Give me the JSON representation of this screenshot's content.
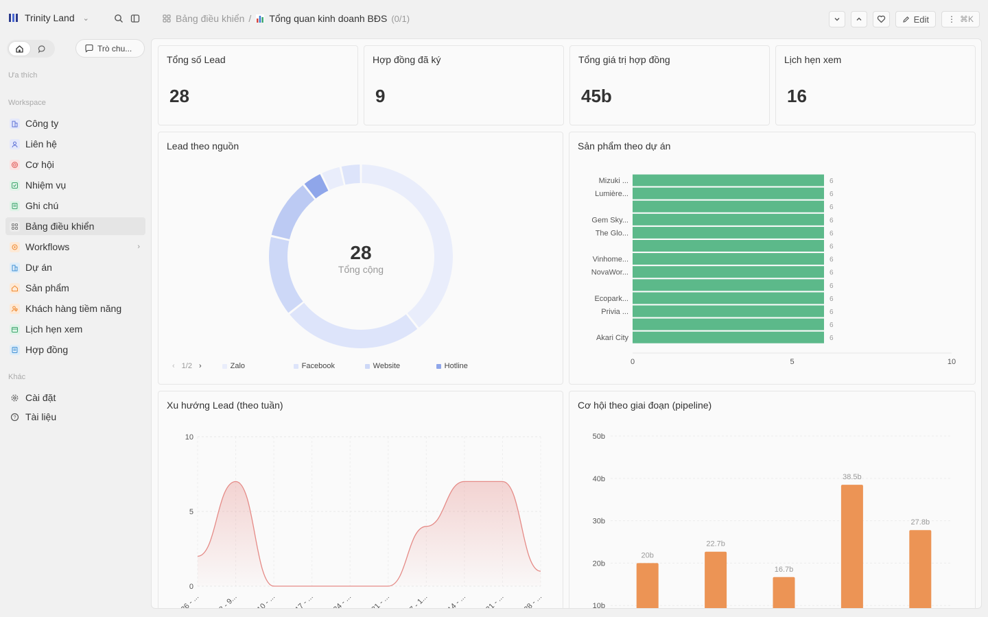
{
  "workspace": {
    "name": "Trinity Land"
  },
  "breadcrumb": {
    "parent": "Bảng điều khiển",
    "separator": "/",
    "title": "Tổng quan kinh doanh BĐS",
    "count": "(0/1)"
  },
  "toolbar": {
    "edit_label": "Edit",
    "shortcut": "⌘K"
  },
  "sidebar": {
    "chat_label": "Trò chu...",
    "favorites_label": "Ưa thích",
    "workspace_label": "Workspace",
    "other_label": "Khác",
    "items": [
      {
        "label": "Công ty",
        "icon": "building-icon",
        "color": "#5b6fd6"
      },
      {
        "label": "Liên hệ",
        "icon": "user-icon",
        "color": "#5b6fd6"
      },
      {
        "label": "Cơ hội",
        "icon": "target-icon",
        "color": "#e0524f"
      },
      {
        "label": "Nhiệm vụ",
        "icon": "checkbox-icon",
        "color": "#3aa56c"
      },
      {
        "label": "Ghi chú",
        "icon": "note-icon",
        "color": "#3aa56c"
      },
      {
        "label": "Bảng điều khiển",
        "icon": "dashboard-icon",
        "color": "#777777"
      },
      {
        "label": "Workflows",
        "icon": "workflow-icon",
        "color": "#f0892e"
      },
      {
        "label": "Dự án",
        "icon": "building-icon",
        "color": "#3d8fd4"
      },
      {
        "label": "Sản phẩm",
        "icon": "home-icon",
        "color": "#f0892e"
      },
      {
        "label": "Khách hàng tiềm năng",
        "icon": "person-search-icon",
        "color": "#f0892e"
      },
      {
        "label": "Lịch hẹn xem",
        "icon": "calendar-icon",
        "color": "#3aa56c"
      },
      {
        "label": "Hợp đồng",
        "icon": "document-icon",
        "color": "#3d8fd4"
      }
    ],
    "other_items": [
      {
        "label": "Cài đặt",
        "icon": "gear-icon"
      },
      {
        "label": "Tài liệu",
        "icon": "help-icon"
      }
    ]
  },
  "kpis": [
    {
      "title": "Tổng số Lead",
      "value": "28"
    },
    {
      "title": "Hợp đồng đã ký",
      "value": "9"
    },
    {
      "title": "Tổng giá trị hợp đồng",
      "value": "45b"
    },
    {
      "title": "Lịch hẹn xem",
      "value": "16"
    }
  ],
  "charts": {
    "lead_source": {
      "title": "Lead theo nguồn"
    },
    "products": {
      "title": "Sản phẩm theo dự án"
    },
    "trend": {
      "title": "Xu hướng Lead (theo tuần)"
    },
    "pipeline": {
      "title": "Cơ hội theo giai đoạn (pipeline)"
    }
  },
  "chart_data": [
    {
      "type": "pie",
      "title": "Lead theo nguồn",
      "center_value": "28",
      "center_label": "Tổng cộng",
      "legend_page": "1/2",
      "slices": [
        {
          "name": "Zalo",
          "value": 11,
          "color": "#e9edfb"
        },
        {
          "name": "Facebook",
          "value": 7,
          "color": "#dde4fa"
        },
        {
          "name": "Website",
          "value": 4,
          "color": "#cdd8f7"
        },
        {
          "name": "",
          "value": 3,
          "color": "#bccaf3"
        },
        {
          "name": "Hotline",
          "value": 1,
          "color": "#8fa6ea"
        },
        {
          "name": "",
          "value": 1,
          "color": "#e9edfb"
        },
        {
          "name": "",
          "value": 1,
          "color": "#dde4fa"
        }
      ],
      "legend": [
        {
          "name": "Zalo",
          "color": "#e9edfb"
        },
        {
          "name": "Facebook",
          "color": "#dde4fa"
        },
        {
          "name": "Website",
          "color": "#cdd8f7"
        },
        {
          "name": "Hotline",
          "color": "#8fa6ea"
        }
      ]
    },
    {
      "type": "bar",
      "orientation": "horizontal",
      "title": "Sản phẩm theo dự án",
      "categories": [
        "Mizuki ...",
        "Lumière...",
        "",
        "Gem Sky...",
        "The Glo...",
        "",
        "Vinhome...",
        "NovaWor...",
        "",
        "Ecopark...",
        "Privia ...",
        "",
        "Akari City"
      ],
      "values": [
        6,
        6,
        6,
        6,
        6,
        6,
        6,
        6,
        6,
        6,
        6,
        6,
        6
      ],
      "xlim": [
        0,
        10
      ],
      "xticks": [
        "0",
        "5",
        "10"
      ],
      "color": "#5cb98a"
    },
    {
      "type": "area",
      "title": "Xu hướng Lead (theo tuần)",
      "x": [
        "26 - ...",
        "3 - 9...",
        "10 - ...",
        "17 - ...",
        "24 - ...",
        "31 - ...",
        "7 - 1...",
        "14 - ...",
        "21 - ...",
        "28 - ..."
      ],
      "values": [
        2,
        7,
        0,
        0,
        0,
        0,
        4,
        7,
        7,
        1
      ],
      "ylim": [
        0,
        10
      ],
      "yticks": [
        "0",
        "5",
        "10"
      ],
      "color": "#e58a86"
    },
    {
      "type": "bar",
      "title": "Cơ hội theo giai đoạn (pipeline)",
      "categories": [
        "",
        "",
        "",
        "",
        ""
      ],
      "values": [
        20,
        22.7,
        16.7,
        38.5,
        27.8
      ],
      "labels": [
        "20b",
        "22.7b",
        "16.7b",
        "38.5b",
        "27.8b"
      ],
      "ylim": [
        0,
        50
      ],
      "yticks": [
        "10b",
        "20b",
        "30b",
        "40b",
        "50b"
      ],
      "color": "#ec9455"
    }
  ]
}
